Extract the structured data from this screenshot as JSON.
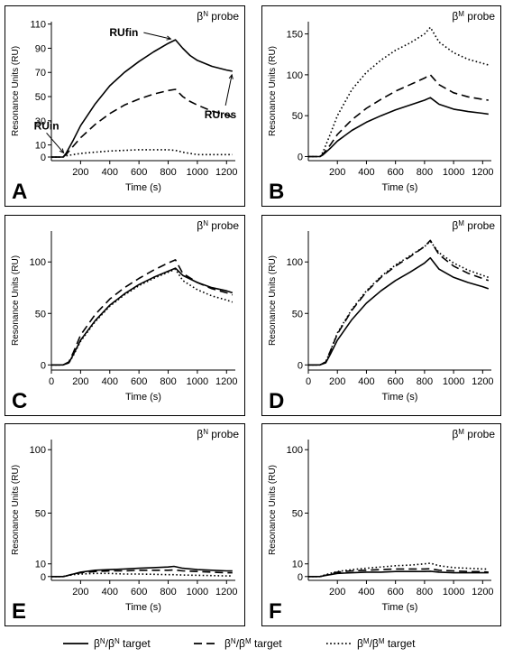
{
  "chart_data": [
    {
      "panel_letter": "A",
      "type": "line",
      "probe_base": "β",
      "probe_sup": "N",
      "probe_rest": " probe",
      "xlabel": "Time (s)",
      "ylabel": "Resonance Units (RU)",
      "xlim": [
        0,
        1260
      ],
      "ylim": [
        -3,
        112
      ],
      "xticks": [
        200,
        400,
        600,
        800,
        1000,
        1200
      ],
      "yticks": [
        0,
        10,
        30,
        50,
        70,
        90,
        110
      ],
      "grid": false,
      "annotations": [
        {
          "text": "RUfin",
          "x": 830,
          "y": 97
        },
        {
          "text": "RUin",
          "x": 90,
          "y": 2
        },
        {
          "text": "RUres",
          "x": 1230,
          "y": 71
        }
      ],
      "series": [
        {
          "style": "solid",
          "x": [
            0,
            80,
            100,
            150,
            200,
            300,
            400,
            500,
            600,
            700,
            800,
            850,
            900,
            950,
            1000,
            1100,
            1200,
            1240
          ],
          "y": [
            0,
            0,
            3,
            14,
            26,
            44,
            59,
            70,
            79,
            87,
            94,
            97,
            90,
            84,
            80,
            75,
            72,
            71
          ]
        },
        {
          "style": "dashed",
          "x": [
            0,
            80,
            100,
            150,
            200,
            300,
            400,
            500,
            600,
            700,
            800,
            850,
            900,
            950,
            1000,
            1100,
            1200,
            1240
          ],
          "y": [
            0,
            0,
            2,
            9,
            16,
            27,
            36,
            43,
            48,
            52,
            55,
            56,
            50,
            46,
            43,
            38,
            35,
            33
          ]
        },
        {
          "style": "dotted",
          "x": [
            0,
            80,
            100,
            150,
            200,
            300,
            400,
            500,
            600,
            700,
            800,
            850,
            900,
            950,
            1000,
            1100,
            1200,
            1240
          ],
          "y": [
            0,
            0,
            1,
            2,
            3,
            4,
            5,
            5.5,
            6,
            6,
            6,
            5.5,
            4,
            3,
            2,
            2,
            2,
            2
          ]
        }
      ]
    },
    {
      "panel_letter": "B",
      "type": "line",
      "probe_base": "β",
      "probe_sup": "M",
      "probe_rest": " probe",
      "xlabel": "Time (s)",
      "ylabel": "Resonance Units (RU)",
      "xlim": [
        0,
        1260
      ],
      "ylim": [
        -5,
        165
      ],
      "xticks": [
        200,
        400,
        600,
        800,
        1000,
        1200
      ],
      "yticks": [
        0,
        50,
        100,
        150
      ],
      "grid": false,
      "annotations": [],
      "series": [
        {
          "style": "solid",
          "x": [
            0,
            80,
            100,
            150,
            200,
            300,
            400,
            500,
            600,
            700,
            800,
            840,
            900,
            1000,
            1100,
            1200,
            1240
          ],
          "y": [
            0,
            0,
            2,
            10,
            19,
            32,
            42,
            50,
            57,
            63,
            69,
            72,
            64,
            58,
            55,
            53,
            52
          ]
        },
        {
          "style": "dashed",
          "x": [
            0,
            80,
            100,
            150,
            200,
            300,
            400,
            500,
            600,
            700,
            800,
            840,
            900,
            1000,
            1100,
            1200,
            1240
          ],
          "y": [
            0,
            0,
            3,
            14,
            27,
            45,
            59,
            70,
            80,
            88,
            96,
            100,
            88,
            78,
            73,
            70,
            69
          ]
        },
        {
          "style": "dotted",
          "x": [
            0,
            80,
            100,
            150,
            200,
            300,
            400,
            500,
            600,
            700,
            800,
            840,
            900,
            1000,
            1100,
            1200,
            1240
          ],
          "y": [
            0,
            0,
            5,
            27,
            50,
            82,
            103,
            118,
            130,
            139,
            150,
            158,
            140,
            127,
            119,
            114,
            112
          ]
        }
      ]
    },
    {
      "panel_letter": "C",
      "type": "line",
      "probe_base": "β",
      "probe_sup": "N",
      "probe_rest": " probe",
      "xlabel": "Time (s)",
      "ylabel": "Resonance Units (RU)",
      "xlim": [
        0,
        1260
      ],
      "ylim": [
        -5,
        130
      ],
      "xticks": [
        0,
        200,
        400,
        600,
        800,
        1000,
        1200
      ],
      "yticks": [
        0,
        50,
        100
      ],
      "grid": false,
      "annotations": [],
      "series": [
        {
          "style": "solid",
          "x": [
            0,
            80,
            120,
            150,
            200,
            300,
            400,
            500,
            600,
            700,
            800,
            850,
            900,
            1000,
            1100,
            1200,
            1240
          ],
          "y": [
            0,
            0,
            2,
            10,
            24,
            43,
            58,
            69,
            78,
            85,
            91,
            94,
            87,
            80,
            75,
            72,
            70
          ]
        },
        {
          "style": "dashed",
          "x": [
            0,
            80,
            120,
            150,
            200,
            300,
            400,
            500,
            600,
            700,
            800,
            850,
            900,
            1000,
            1100,
            1200,
            1240
          ],
          "y": [
            0,
            0,
            3,
            12,
            29,
            49,
            64,
            75,
            84,
            92,
            99,
            102,
            89,
            80,
            74,
            70,
            68
          ]
        },
        {
          "style": "dotted",
          "x": [
            0,
            80,
            120,
            150,
            200,
            300,
            400,
            500,
            600,
            700,
            800,
            850,
            900,
            1000,
            1100,
            1200,
            1240
          ],
          "y": [
            0,
            0,
            2,
            9,
            23,
            42,
            57,
            68,
            77,
            84,
            90,
            93,
            82,
            73,
            67,
            63,
            61
          ]
        }
      ]
    },
    {
      "panel_letter": "D",
      "type": "line",
      "probe_base": "β",
      "probe_sup": "M",
      "probe_rest": " probe",
      "xlabel": "Time (s)",
      "ylabel": "Resonance Units (RU)",
      "xlim": [
        0,
        1260
      ],
      "ylim": [
        -5,
        130
      ],
      "xticks": [
        0,
        200,
        400,
        600,
        800,
        1000,
        1200
      ],
      "yticks": [
        0,
        50,
        100
      ],
      "grid": false,
      "annotations": [],
      "series": [
        {
          "style": "solid",
          "x": [
            0,
            80,
            120,
            150,
            200,
            300,
            400,
            500,
            600,
            700,
            800,
            840,
            900,
            1000,
            1100,
            1200,
            1240
          ],
          "y": [
            0,
            0,
            2,
            10,
            24,
            44,
            60,
            72,
            82,
            90,
            99,
            104,
            93,
            85,
            80,
            76,
            74
          ]
        },
        {
          "style": "dashed",
          "x": [
            0,
            80,
            120,
            150,
            200,
            300,
            400,
            500,
            600,
            700,
            800,
            840,
            900,
            1000,
            1100,
            1200,
            1240
          ],
          "y": [
            0,
            0,
            3,
            13,
            30,
            53,
            71,
            85,
            96,
            105,
            115,
            121,
            107,
            96,
            89,
            84,
            82
          ]
        },
        {
          "style": "dotted",
          "x": [
            0,
            80,
            120,
            150,
            200,
            300,
            400,
            500,
            600,
            700,
            800,
            840,
            900,
            1000,
            1100,
            1200,
            1240
          ],
          "y": [
            0,
            0,
            3,
            13,
            31,
            54,
            72,
            86,
            97,
            106,
            115,
            120,
            109,
            99,
            92,
            87,
            85
          ]
        }
      ]
    },
    {
      "panel_letter": "E",
      "type": "line",
      "probe_base": "β",
      "probe_sup": "N",
      "probe_rest": " probe",
      "xlabel": "Time (s)",
      "ylabel": "Resonance Units (RU)",
      "xlim": [
        0,
        1260
      ],
      "ylim": [
        -3,
        108
      ],
      "xticks": [
        200,
        400,
        600,
        800,
        1000,
        1200
      ],
      "yticks": [
        0,
        10,
        50,
        100
      ],
      "grid": false,
      "annotations": [],
      "series": [
        {
          "style": "solid",
          "x": [
            0,
            80,
            100,
            150,
            200,
            300,
            400,
            500,
            600,
            700,
            800,
            840,
            900,
            1000,
            1100,
            1200,
            1240
          ],
          "y": [
            0,
            0,
            0.5,
            2,
            3.5,
            5,
            5.5,
            6,
            6.5,
            7,
            7.5,
            8,
            6.5,
            5.5,
            5,
            4.5,
            4.5
          ]
        },
        {
          "style": "dashed",
          "x": [
            0,
            80,
            100,
            150,
            200,
            300,
            400,
            500,
            600,
            700,
            800,
            840,
            900,
            1000,
            1100,
            1200,
            1240
          ],
          "y": [
            0,
            0,
            0.5,
            2,
            3,
            4,
            4.5,
            4.5,
            5,
            5,
            5,
            5.2,
            4.5,
            4,
            3.5,
            3,
            3
          ]
        },
        {
          "style": "dotted",
          "x": [
            0,
            80,
            100,
            150,
            200,
            300,
            400,
            500,
            600,
            700,
            800,
            840,
            900,
            1000,
            1100,
            1200,
            1240
          ],
          "y": [
            0,
            0,
            0.5,
            1.5,
            2,
            2.5,
            2.5,
            2,
            2,
            1.8,
            1.5,
            1.5,
            1.2,
            1,
            0.8,
            0.5,
            0.5
          ]
        }
      ]
    },
    {
      "panel_letter": "F",
      "type": "line",
      "probe_base": "β",
      "probe_sup": "M",
      "probe_rest": " probe",
      "xlabel": "Time (s)",
      "ylabel": "Resonance Units (RU)",
      "xlim": [
        0,
        1260
      ],
      "ylim": [
        -3,
        108
      ],
      "xticks": [
        200,
        400,
        600,
        800,
        1000,
        1200
      ],
      "yticks": [
        0,
        10,
        50,
        100
      ],
      "grid": false,
      "annotations": [],
      "series": [
        {
          "style": "solid",
          "x": [
            0,
            80,
            100,
            150,
            200,
            300,
            400,
            500,
            600,
            700,
            800,
            840,
            900,
            1000,
            1100,
            1200,
            1240
          ],
          "y": [
            0,
            0,
            0.5,
            1.5,
            2.5,
            3,
            3.5,
            3.5,
            4,
            4,
            4,
            4.2,
            3.5,
            3,
            3,
            3,
            3
          ]
        },
        {
          "style": "dashed",
          "x": [
            0,
            80,
            100,
            150,
            200,
            300,
            400,
            500,
            600,
            700,
            800,
            840,
            900,
            1000,
            1100,
            1200,
            1240
          ],
          "y": [
            0,
            0,
            0.5,
            2,
            3.5,
            4.5,
            5,
            5.5,
            6,
            6,
            6,
            6.2,
            5,
            4.5,
            4,
            3.8,
            3.5
          ]
        },
        {
          "style": "dotted",
          "x": [
            0,
            80,
            100,
            150,
            200,
            300,
            400,
            500,
            600,
            700,
            800,
            840,
            900,
            1000,
            1100,
            1200,
            1240
          ],
          "y": [
            0,
            0,
            0.8,
            2.5,
            4,
            5.5,
            6.5,
            7.5,
            8.5,
            9,
            10,
            10.5,
            8.5,
            7,
            6.5,
            6,
            6
          ]
        }
      ]
    }
  ],
  "legend": {
    "placement": "bottom",
    "items": [
      {
        "style": "solid",
        "base": "β",
        "sup1": "N",
        "mid": "/β",
        "sup2": "N",
        "rest": " target"
      },
      {
        "style": "dashed",
        "base": "β",
        "sup1": "N",
        "mid": "/β",
        "sup2": "M",
        "rest": " target"
      },
      {
        "style": "dotted",
        "base": "β",
        "sup1": "M",
        "mid": "/β",
        "sup2": "M",
        "rest": " target"
      }
    ]
  }
}
